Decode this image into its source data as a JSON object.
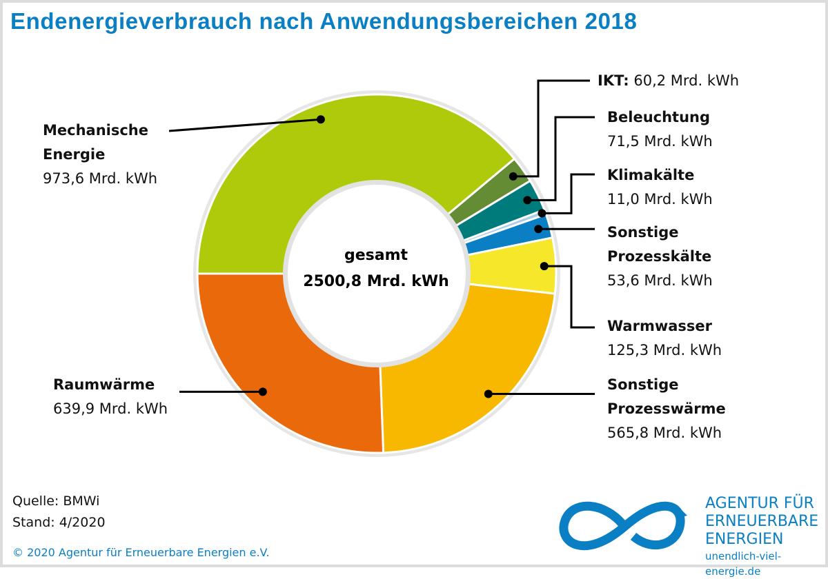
{
  "title": "Endenergieverbrauch nach Anwendungsbereichen 2018",
  "chart_data": {
    "type": "pie",
    "donut": true,
    "unit": "Mrd. kWh",
    "center_label": "gesamt",
    "center_value": "2500,8 Mrd. kWh",
    "slices": [
      {
        "name": "Mechanische Energie",
        "value": 973.6,
        "label_value": "973,6 Mrd. kWh",
        "color": "#afca0b"
      },
      {
        "name": "IKT",
        "value": 60.2,
        "label_value": "60,2 Mrd. kWh",
        "color": "#648c35"
      },
      {
        "name": "Beleuchtung",
        "value": 71.5,
        "label_value": "71,5 Mrd. kWh",
        "color": "#007b7b"
      },
      {
        "name": "Klimakälte",
        "value": 11.0,
        "label_value": "11,0 Mrd. kWh",
        "color": "#a9cdea"
      },
      {
        "name": "Sonstige Prozesskälte",
        "value": 53.6,
        "label_value": "53,6 Mrd. kWh",
        "color": "#0a7fc4"
      },
      {
        "name": "Warmwasser",
        "value": 125.3,
        "label_value": "125,3 Mrd. kWh",
        "color": "#f6e72a"
      },
      {
        "name": "Sonstige Prozesswärme",
        "value": 565.8,
        "label_value": "565,8 Mrd. kWh",
        "color": "#f9b800"
      },
      {
        "name": "Raumwärme",
        "value": 639.9,
        "label_value": "639,9 Mrd. kWh",
        "color": "#ea690b"
      }
    ],
    "labels": {
      "mech_1": "Mechanische",
      "mech_2": "Energie",
      "ikt": "IKT:",
      "bel": "Beleuchtung",
      "klima": "Klimakälte",
      "pk_1": "Sonstige",
      "pk_2": "Prozesskälte",
      "ww": "Warmwasser",
      "pw_1": "Sonstige",
      "pw_2": "Prozesswärme",
      "raum": "Raumwärme"
    }
  },
  "footer": {
    "source": "Quelle: BMWi",
    "date": "Stand: 4/2020",
    "copyright": "© 2020 Agentur für Erneuerbare Energien e.V."
  },
  "logo": {
    "line1": "AGENTUR FÜR",
    "line2": "ERNEUERBARE",
    "line3": "ENERGIEN",
    "url": "unendlich-viel-energie.de"
  }
}
